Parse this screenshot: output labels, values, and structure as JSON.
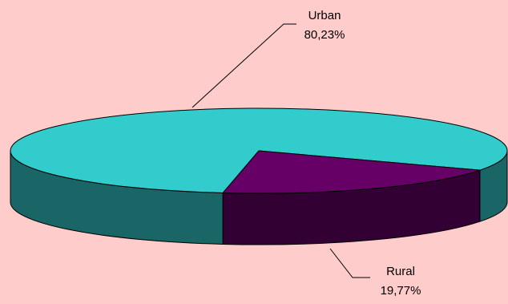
{
  "chart_data": {
    "type": "pie",
    "three_d": true,
    "slices": [
      {
        "name": "Urban",
        "value": 80.23,
        "value_label": "80,23%",
        "top_color": "#33CCCC",
        "side_color": "#1A6666"
      },
      {
        "name": "Rural",
        "value": 19.77,
        "value_label": "19,77%",
        "top_color": "#660066",
        "side_color": "#330033"
      }
    ],
    "legend": "none"
  },
  "colors": {
    "background": "#FFCCCC",
    "outline": "#000000"
  }
}
